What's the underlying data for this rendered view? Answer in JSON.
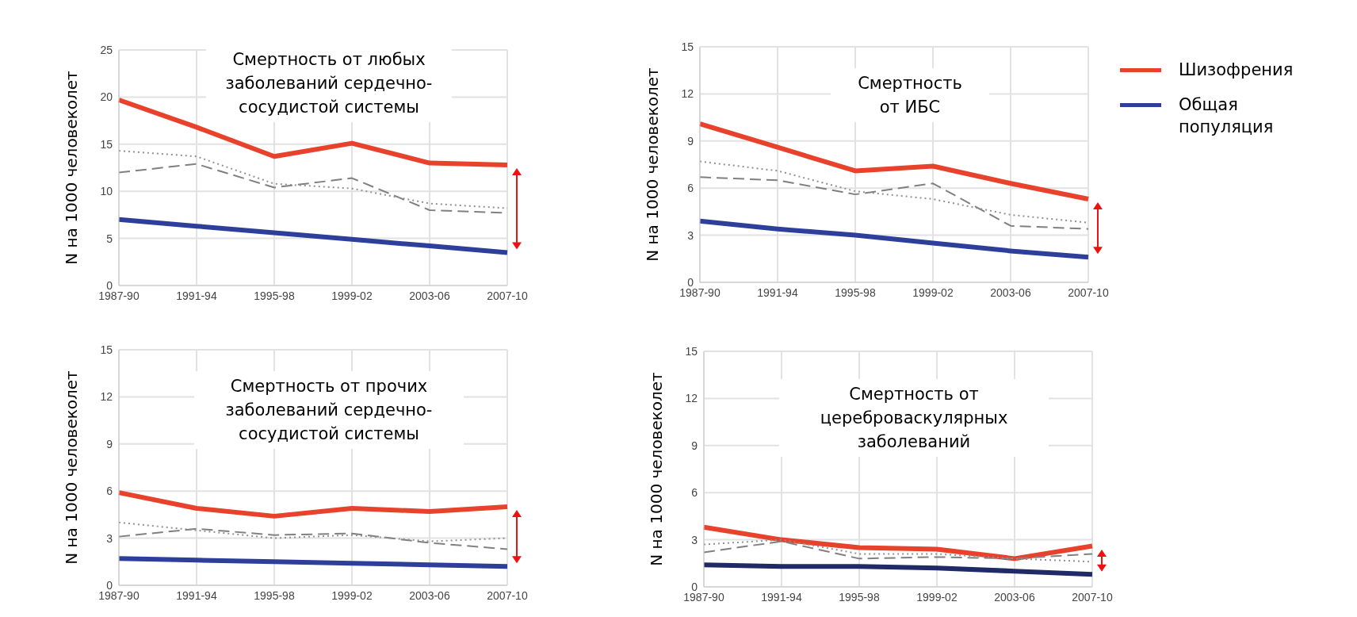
{
  "chart_data": [
    {
      "type": "line",
      "title": "Смертность от любых заболеваний сердечно-сосудистой системы",
      "ylabel": "N на 1000 человеколет",
      "categories": [
        "1987-90",
        "1991-94",
        "1995-98",
        "1999-02",
        "2003-06",
        "2007-10"
      ],
      "ylim": [
        0,
        25
      ],
      "yticks": [
        0,
        5,
        10,
        15,
        20,
        25
      ],
      "grid": true,
      "series": [
        {
          "color": "#e8412c",
          "line_style": "solid",
          "values": [
            19.7,
            16.8,
            13.7,
            15.1,
            13.0,
            12.8
          ]
        },
        {
          "color": "#2e3f9b",
          "line_style": "solid",
          "values": [
            7.0,
            6.3,
            5.6,
            4.9,
            4.2,
            3.5
          ]
        },
        {
          "color": "#808080",
          "line_style": "dashed",
          "values": [
            12.0,
            12.9,
            10.4,
            11.4,
            8.0,
            7.7
          ]
        },
        {
          "color": "#909090",
          "line_style": "dotted",
          "values": [
            14.3,
            13.7,
            10.8,
            10.3,
            8.7,
            8.2
          ]
        }
      ]
    },
    {
      "type": "line",
      "title": "Смертность от ИБС",
      "ylabel": "N на 1000 человеколет",
      "categories": [
        "1987-90",
        "1991-94",
        "1995-98",
        "1999-02",
        "2003-06",
        "2007-10"
      ],
      "ylim": [
        0,
        15
      ],
      "yticks": [
        0,
        3,
        6,
        9,
        12,
        15
      ],
      "grid": true,
      "legend": "right",
      "series": [
        {
          "name": "Шизофрения",
          "color": "#e8412c",
          "line_style": "solid",
          "values": [
            10.1,
            8.6,
            7.1,
            7.4,
            6.3,
            5.3
          ]
        },
        {
          "name": "Общая популяция",
          "color": "#2e3f9b",
          "line_style": "solid",
          "values": [
            3.9,
            3.4,
            3.0,
            2.5,
            2.0,
            1.6
          ]
        },
        {
          "color": "#808080",
          "line_style": "dashed",
          "values": [
            6.7,
            6.5,
            5.6,
            6.3,
            3.6,
            3.4
          ]
        },
        {
          "color": "#909090",
          "line_style": "dotted",
          "values": [
            7.7,
            7.1,
            5.8,
            5.3,
            4.3,
            3.8
          ]
        }
      ]
    },
    {
      "type": "line",
      "title": "Смертность от прочих заболеваний сердечно-сосудистой системы",
      "ylabel": "N на 1000 человеколет",
      "categories": [
        "1987-90",
        "1991-94",
        "1995-98",
        "1999-02",
        "2003-06",
        "2007-10"
      ],
      "ylim": [
        0,
        15
      ],
      "yticks": [
        0,
        3,
        6,
        9,
        12,
        15
      ],
      "grid": true,
      "series": [
        {
          "color": "#e8412c",
          "line_style": "solid",
          "values": [
            5.9,
            4.9,
            4.4,
            4.9,
            4.7,
            5.0
          ]
        },
        {
          "color": "#2e3f9b",
          "line_style": "solid",
          "values": [
            1.7,
            1.6,
            1.5,
            1.4,
            1.3,
            1.2
          ]
        },
        {
          "color": "#808080",
          "line_style": "dashed",
          "values": [
            3.1,
            3.6,
            3.2,
            3.3,
            2.7,
            2.3
          ]
        },
        {
          "color": "#909090",
          "line_style": "dotted",
          "values": [
            4.0,
            3.5,
            3.0,
            3.2,
            2.8,
            3.0
          ]
        }
      ]
    },
    {
      "type": "line",
      "title": "Смертность от цереброваскулярных заболеваний",
      "ylabel": "N на 1000 человеколет",
      "categories": [
        "1987-90",
        "1991-94",
        "1995-98",
        "1999-02",
        "2003-06",
        "2007-10"
      ],
      "ylim": [
        0,
        15
      ],
      "yticks": [
        0,
        3,
        6,
        9,
        12,
        15
      ],
      "grid": true,
      "series": [
        {
          "color": "#e8412c",
          "line_style": "solid",
          "values": [
            3.8,
            3.0,
            2.5,
            2.4,
            1.8,
            2.6
          ]
        },
        {
          "color": "#1f2a66",
          "line_style": "solid",
          "values": [
            1.4,
            1.3,
            1.3,
            1.2,
            1.0,
            0.8
          ]
        },
        {
          "color": "#808080",
          "line_style": "dashed",
          "values": [
            2.2,
            2.9,
            1.8,
            1.9,
            1.8,
            2.1
          ]
        },
        {
          "color": "#909090",
          "line_style": "dotted",
          "values": [
            2.7,
            3.0,
            2.1,
            2.1,
            1.8,
            1.6
          ]
        }
      ]
    }
  ]
}
